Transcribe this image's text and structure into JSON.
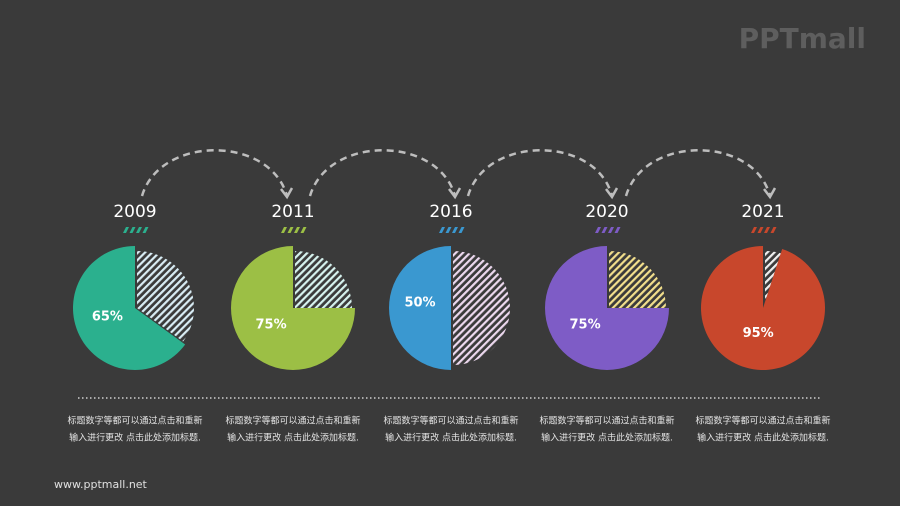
{
  "logo": "PPTmall",
  "footer": "www.pptmall.net",
  "chart_data": [
    {
      "type": "pie",
      "title": "2009",
      "values": [
        65
      ],
      "value_labels": [
        "65%"
      ],
      "color": "#2bb08e",
      "hatch_color": "#d8ecf4",
      "caption": [
        "标题数字等都可以通过点击和重新",
        "输入进行更改 点击此处添加标题."
      ]
    },
    {
      "type": "pie",
      "title": "2011",
      "values": [
        75
      ],
      "value_labels": [
        "75%"
      ],
      "color": "#9cbf45",
      "hatch_color": "#d6f2ee",
      "caption": [
        "标题数字等都可以通过点击和重新",
        "输入进行更改 点击此处添加标题."
      ]
    },
    {
      "type": "pie",
      "title": "2016",
      "values": [
        50
      ],
      "value_labels": [
        "50%"
      ],
      "color": "#3a98d0",
      "hatch_color": "#ecd8ee",
      "caption": [
        "标题数字等都可以通过点击和重新",
        "输入进行更改 点击此处添加标题."
      ]
    },
    {
      "type": "pie",
      "title": "2020",
      "values": [
        75
      ],
      "value_labels": [
        "75%"
      ],
      "color": "#7e5cc6",
      "hatch_color": "#f2df8c",
      "caption": [
        "标题数字等都可以通过点击和重新",
        "输入进行更改 点击此处添加标题."
      ]
    },
    {
      "type": "pie",
      "title": "2021",
      "values": [
        95
      ],
      "value_labels": [
        "95%"
      ],
      "color": "#c8472c",
      "hatch_color": "#f0f0f0",
      "caption": [
        "标题数字等都可以通过点击和重新",
        "输入进行更改 点击此处添加标题."
      ]
    }
  ]
}
